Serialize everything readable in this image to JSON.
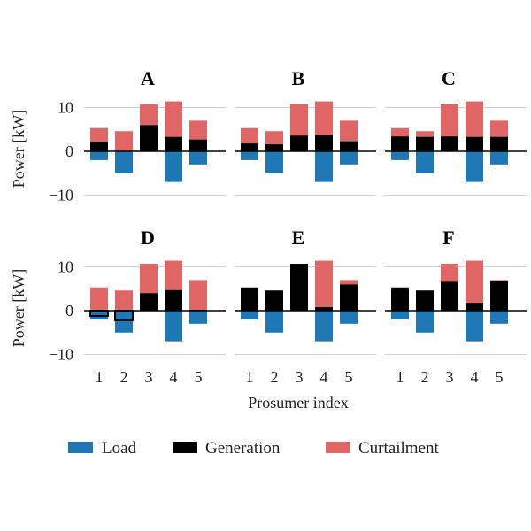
{
  "chart_data": {
    "type": "bar",
    "panels": [
      "A",
      "B",
      "C",
      "D",
      "E",
      "F"
    ],
    "categories": [
      "1",
      "2",
      "3",
      "4",
      "5"
    ],
    "xlabel": "Prosumer index",
    "ylabel": "Power [kW]",
    "ylim": [
      -10,
      13
    ],
    "yticks": [
      -10,
      0,
      10
    ],
    "ytick_labels": [
      "−10",
      "0",
      "10"
    ],
    "grid": true,
    "legend_position": "bottom",
    "series_names": [
      "Load",
      "Generation",
      "Curtailment"
    ],
    "colors": {
      "load": "#1f77b4",
      "generation": "#000000",
      "curtailment": "#e06666"
    },
    "load": [
      -2,
      -5,
      0,
      -7,
      -3
    ],
    "available_generation": [
      5.3,
      4.6,
      10.7,
      11.4,
      7.0
    ],
    "generation": {
      "A": [
        2.2,
        0.1,
        6.0,
        3.3,
        2.7
      ],
      "B": [
        1.8,
        1.6,
        3.6,
        3.8,
        2.3
      ],
      "C": [
        3.4,
        3.3,
        3.4,
        3.3,
        3.3
      ],
      "D": [
        -1.2,
        -2.2,
        4.0,
        4.7,
        0.2
      ],
      "E": [
        5.3,
        4.6,
        10.7,
        0.8,
        6.0
      ],
      "F": [
        5.3,
        4.6,
        6.6,
        1.8,
        6.8
      ]
    }
  }
}
